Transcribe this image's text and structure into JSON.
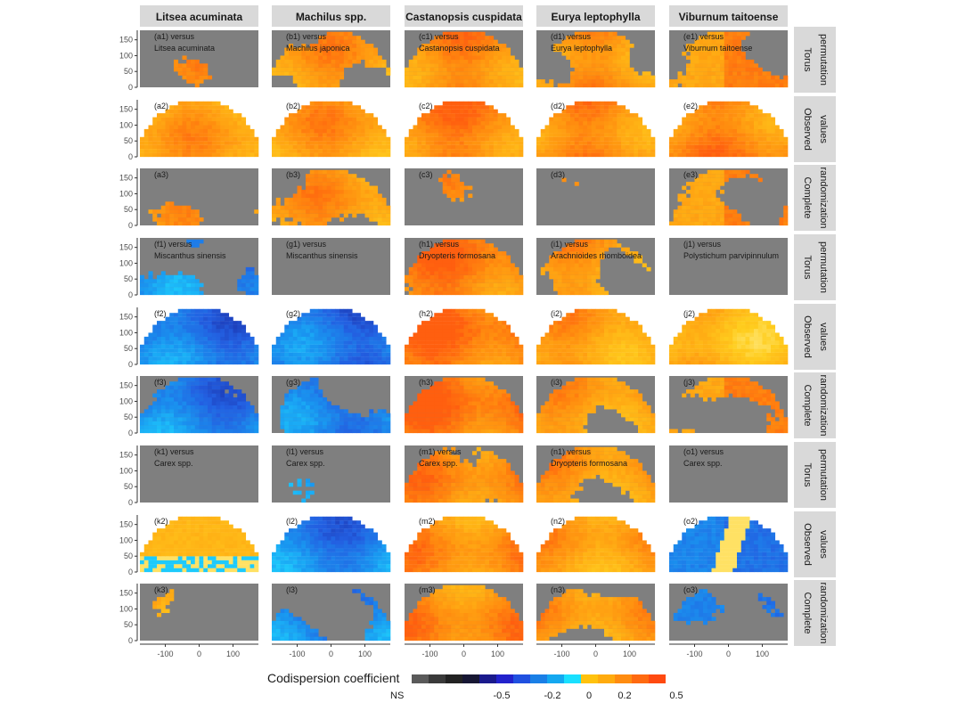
{
  "chart_data": {
    "type": "heatmap",
    "description_kind": "faceted spatial codispersion maps",
    "columns": [
      "Litsea acuminata",
      "Machilus spp.",
      "Castanopsis cuspidata",
      "Eurya leptophylla",
      "Viburnum taitoense"
    ],
    "row_strips": [
      {
        "text": "Torus\npermutation",
        "lines": [
          "Torus",
          "permutation"
        ]
      },
      {
        "text": "Observed\nvalues",
        "lines": [
          "Observed",
          "values"
        ]
      },
      {
        "text": "Complete\nrandomization",
        "lines": [
          "Complete",
          "randomization"
        ]
      }
    ],
    "row_strip_pattern": [
      0,
      1,
      2,
      0,
      1,
      2,
      0,
      1,
      2
    ],
    "y_axis": {
      "ticks": [
        0,
        50,
        100,
        150
      ],
      "range": [
        0,
        180
      ]
    },
    "x_axis": {
      "ticks": [
        -100,
        0,
        100
      ],
      "range": [
        -175,
        175
      ]
    },
    "grid": false,
    "legend": {
      "title": "Codispersion coefficient",
      "position": "bottom",
      "ns_label": "NS",
      "tick_labels": [
        "-0.5",
        "-0.2",
        "0",
        "0.2",
        "0.5"
      ],
      "tick_values": [
        -0.5,
        -0.2,
        0,
        0.2,
        0.5
      ],
      "swatches": [
        "#5a5a5a",
        "#3a3a3a",
        "#222222",
        "#171733",
        "#1a1a8c",
        "#2222cc",
        "#2050e0",
        "#1a7fe6",
        "#14a8f0",
        "#19e0ff",
        "#ffc20e",
        "#ffab0e",
        "#ff8c10",
        "#ff6a10",
        "#ff4a10"
      ]
    },
    "colors": {
      "ns": "#7f7f7f",
      "strip_bg": "#d9d9d9",
      "panel_border": "#333333"
    },
    "focal_pairs": [
      [
        "Litsea acuminata",
        "Machilus japonica",
        "Castanopsis cuspidata",
        "Eurya leptophylla",
        "Viburnum taitoense"
      ],
      [
        "Miscanthus sinensis",
        "Miscanthus sinensis",
        "Dryopteris formosana",
        "Arachnioides rhomboidea",
        "Polystichum parvipinnulum"
      ],
      [
        "Carex spp.",
        "Carex spp.",
        "Carex spp.",
        "Dryopteris formosana",
        "Carex spp."
      ]
    ],
    "panel_prefix_letters": [
      [
        "a",
        "b",
        "c",
        "d",
        "e"
      ],
      [
        "f",
        "g",
        "h",
        "i",
        "j"
      ],
      [
        "k",
        "l",
        "m",
        "n",
        "o"
      ]
    ],
    "panels": [
      {
        "row": 0,
        "col": 0,
        "tag": "(a1)",
        "header": "versus",
        "species": "Litsea acuminata",
        "kind": "sig",
        "base": 0.28,
        "cover": 0.18
      },
      {
        "row": 0,
        "col": 1,
        "tag": "(b1)",
        "header": "versus",
        "species": "Machilus japonica",
        "kind": "sig",
        "base": 0.3,
        "cover": 0.55
      },
      {
        "row": 0,
        "col": 2,
        "tag": "(c1)",
        "header": "versus",
        "species": "Castanopsis cuspidata",
        "kind": "sig",
        "base": 0.35,
        "cover": 0.92
      },
      {
        "row": 0,
        "col": 3,
        "tag": "(d1)",
        "header": "versus",
        "species": "Eurya leptophylla",
        "kind": "sig",
        "base": 0.32,
        "cover": 0.72
      },
      {
        "row": 0,
        "col": 4,
        "tag": "(e1)",
        "header": "versus",
        "species": "Viburnum taitoense",
        "kind": "split",
        "base": 0.33,
        "cover": 0.7
      },
      {
        "row": 1,
        "col": 0,
        "tag": "(a2)",
        "header": "",
        "species": "",
        "kind": "obs",
        "base": 0.28
      },
      {
        "row": 1,
        "col": 1,
        "tag": "(b2)",
        "header": "",
        "species": "",
        "kind": "obs",
        "base": 0.3
      },
      {
        "row": 1,
        "col": 2,
        "tag": "(c2)",
        "header": "",
        "species": "",
        "kind": "obs",
        "base": 0.38
      },
      {
        "row": 1,
        "col": 3,
        "tag": "(d2)",
        "header": "",
        "species": "",
        "kind": "obs",
        "base": 0.36
      },
      {
        "row": 1,
        "col": 4,
        "tag": "(e2)",
        "header": "",
        "species": "",
        "kind": "obs",
        "base": 0.36
      },
      {
        "row": 2,
        "col": 0,
        "tag": "(a3)",
        "header": "",
        "species": "",
        "kind": "sig",
        "base": 0.27,
        "cover": 0.3
      },
      {
        "row": 2,
        "col": 1,
        "tag": "(b3)",
        "header": "",
        "species": "",
        "kind": "sig",
        "base": 0.3,
        "cover": 0.55
      },
      {
        "row": 2,
        "col": 2,
        "tag": "(c3)",
        "header": "",
        "species": "",
        "kind": "sig",
        "base": 0.28,
        "cover": 0.12
      },
      {
        "row": 2,
        "col": 3,
        "tag": "(d3)",
        "header": "",
        "species": "",
        "kind": "sig",
        "base": 0.28,
        "cover": 0.08
      },
      {
        "row": 2,
        "col": 4,
        "tag": "(e3)",
        "header": "",
        "species": "",
        "kind": "split",
        "base": 0.34,
        "cover": 0.6
      },
      {
        "row": 3,
        "col": 0,
        "tag": "(f1)",
        "header": "versus",
        "species": "Miscanthus sinensis",
        "kind": "sig",
        "base": -0.25,
        "cover": 0.45
      },
      {
        "row": 3,
        "col": 1,
        "tag": "(g1)",
        "header": "versus",
        "species": "Miscanthus sinensis",
        "kind": "sig",
        "base": -0.25,
        "cover": 0.1
      },
      {
        "row": 3,
        "col": 2,
        "tag": "(h1)",
        "header": "versus",
        "species": "Dryopteris formosana",
        "kind": "sig",
        "base": 0.4,
        "cover": 0.95
      },
      {
        "row": 3,
        "col": 3,
        "tag": "(i1)",
        "header": "versus",
        "species": "Arachnioides rhomboidea",
        "kind": "sig",
        "base": 0.3,
        "cover": 0.6
      },
      {
        "row": 3,
        "col": 4,
        "tag": "(j1)",
        "header": "versus",
        "species": "Polystichum parvipinnulum",
        "kind": "sig",
        "base": 0.25,
        "cover": 0.02
      },
      {
        "row": 4,
        "col": 0,
        "tag": "(f2)",
        "header": "",
        "species": "",
        "kind": "obs",
        "base": -0.28
      },
      {
        "row": 4,
        "col": 1,
        "tag": "(g2)",
        "header": "",
        "species": "",
        "kind": "obs",
        "base": -0.3
      },
      {
        "row": 4,
        "col": 2,
        "tag": "(h2)",
        "header": "",
        "species": "",
        "kind": "obs",
        "base": 0.42
      },
      {
        "row": 4,
        "col": 3,
        "tag": "(i2)",
        "header": "",
        "species": "",
        "kind": "obs",
        "base": 0.3
      },
      {
        "row": 4,
        "col": 4,
        "tag": "(j2)",
        "header": "",
        "species": "",
        "kind": "obs",
        "base": 0.22
      },
      {
        "row": 5,
        "col": 0,
        "tag": "(f3)",
        "header": "",
        "species": "",
        "kind": "sig",
        "base": -0.26,
        "cover": 0.78
      },
      {
        "row": 5,
        "col": 1,
        "tag": "(g3)",
        "header": "",
        "species": "",
        "kind": "sig",
        "base": -0.28,
        "cover": 0.5
      },
      {
        "row": 5,
        "col": 2,
        "tag": "(h3)",
        "header": "",
        "species": "",
        "kind": "sig",
        "base": 0.42,
        "cover": 1.0
      },
      {
        "row": 5,
        "col": 3,
        "tag": "(i3)",
        "header": "",
        "species": "",
        "kind": "sig",
        "base": 0.3,
        "cover": 0.68
      },
      {
        "row": 5,
        "col": 4,
        "tag": "(j3)",
        "header": "",
        "species": "",
        "kind": "split",
        "base": 0.28,
        "cover": 0.45
      },
      {
        "row": 6,
        "col": 0,
        "tag": "(k1)",
        "header": "versus",
        "species": "Carex spp.",
        "kind": "sig",
        "base": 0.0,
        "cover": 0.0
      },
      {
        "row": 6,
        "col": 1,
        "tag": "(l1)",
        "header": "versus",
        "species": "Carex spp.",
        "kind": "sig",
        "base": -0.25,
        "cover": 0.12
      },
      {
        "row": 6,
        "col": 2,
        "tag": "(m1)",
        "header": "versus",
        "species": "Carex spp.",
        "kind": "sig",
        "base": 0.35,
        "cover": 0.78
      },
      {
        "row": 6,
        "col": 3,
        "tag": "(n1)",
        "header": "versus",
        "species": "Dryopteris formosana",
        "kind": "sig",
        "base": 0.3,
        "cover": 0.6
      },
      {
        "row": 6,
        "col": 4,
        "tag": "(o1)",
        "header": "versus",
        "species": "Carex spp.",
        "kind": "sig",
        "base": 0.0,
        "cover": 0.0
      },
      {
        "row": 7,
        "col": 0,
        "tag": "(k2)",
        "header": "",
        "species": "",
        "kind": "mixed",
        "base": 0.25
      },
      {
        "row": 7,
        "col": 1,
        "tag": "(l2)",
        "header": "",
        "species": "",
        "kind": "obs",
        "base": -0.25
      },
      {
        "row": 7,
        "col": 2,
        "tag": "(m2)",
        "header": "",
        "species": "",
        "kind": "obs",
        "base": 0.34
      },
      {
        "row": 7,
        "col": 3,
        "tag": "(n2)",
        "header": "",
        "species": "",
        "kind": "obs",
        "base": 0.3
      },
      {
        "row": 7,
        "col": 4,
        "tag": "(o2)",
        "header": "",
        "species": "",
        "kind": "mixedsplit",
        "base": -0.2
      },
      {
        "row": 8,
        "col": 0,
        "tag": "(k3)",
        "header": "",
        "species": "",
        "kind": "blob",
        "base": 0.25,
        "cover": 0.3
      },
      {
        "row": 8,
        "col": 1,
        "tag": "(l3)",
        "header": "",
        "species": "",
        "kind": "sig",
        "base": -0.25,
        "cover": 0.42
      },
      {
        "row": 8,
        "col": 2,
        "tag": "(m3)",
        "header": "",
        "species": "",
        "kind": "sig",
        "base": 0.36,
        "cover": 0.95
      },
      {
        "row": 8,
        "col": 3,
        "tag": "(n3)",
        "header": "",
        "species": "",
        "kind": "sig",
        "base": 0.3,
        "cover": 0.55
      },
      {
        "row": 8,
        "col": 4,
        "tag": "(o3)",
        "header": "",
        "species": "",
        "kind": "split",
        "base": -0.22,
        "cover": 0.4
      }
    ]
  }
}
